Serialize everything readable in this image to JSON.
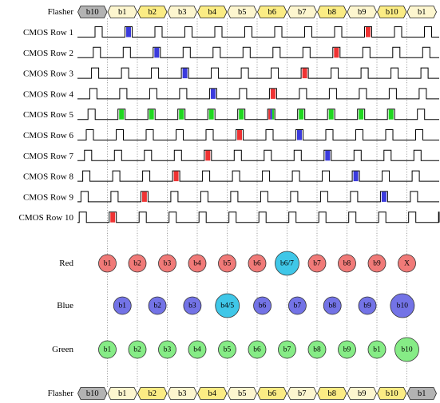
{
  "colors": {
    "red": "#f07a78",
    "red_pulse": "#ef3333",
    "blue": "#7373e6",
    "blue_pulse": "#3b3bdd",
    "green": "#86ec86",
    "green_pulse": "#1fd81f",
    "cyan": "#3fc7e8",
    "flasher_yellow": "#fbec84",
    "flasher_light": "#fdf6cf",
    "flasher_gray": "#b3b3b3"
  },
  "flasher": {
    "label": "Flasher",
    "top_segments": [
      {
        "text": "b10",
        "fill": "gray"
      },
      {
        "text": "b1",
        "fill": "light"
      },
      {
        "text": "b2",
        "fill": "yellow"
      },
      {
        "text": "b3",
        "fill": "light"
      },
      {
        "text": "b4",
        "fill": "yellow"
      },
      {
        "text": "b5",
        "fill": "light"
      },
      {
        "text": "b6",
        "fill": "yellow"
      },
      {
        "text": "b7",
        "fill": "light"
      },
      {
        "text": "b8",
        "fill": "yellow"
      },
      {
        "text": "b9",
        "fill": "light"
      },
      {
        "text": "b10",
        "fill": "yellow"
      },
      {
        "text": "b1",
        "fill": "light"
      }
    ],
    "bottom_segments": [
      {
        "text": "b10",
        "fill": "gray"
      },
      {
        "text": "b1",
        "fill": "light"
      },
      {
        "text": "b2",
        "fill": "yellow"
      },
      {
        "text": "b3",
        "fill": "light"
      },
      {
        "text": "b4",
        "fill": "yellow"
      },
      {
        "text": "b5",
        "fill": "light"
      },
      {
        "text": "b6",
        "fill": "yellow"
      },
      {
        "text": "b7",
        "fill": "light"
      },
      {
        "text": "b8",
        "fill": "yellow"
      },
      {
        "text": "b9",
        "fill": "light"
      },
      {
        "text": "b10",
        "fill": "yellow"
      },
      {
        "text": "b1",
        "fill": "gray"
      }
    ]
  },
  "cmos_rows": [
    {
      "label": "CMOS Row 1",
      "highlights": [
        {
          "slot": 1,
          "color": "blue"
        },
        {
          "slot": 9,
          "color": "red"
        }
      ]
    },
    {
      "label": "CMOS Row 2",
      "highlights": [
        {
          "slot": 2,
          "color": "blue"
        },
        {
          "slot": 8,
          "color": "red"
        }
      ]
    },
    {
      "label": "CMOS Row 3",
      "highlights": [
        {
          "slot": 3,
          "color": "blue"
        },
        {
          "slot": 7,
          "color": "red"
        }
      ]
    },
    {
      "label": "CMOS Row 4",
      "highlights": [
        {
          "slot": 4,
          "color": "blue"
        },
        {
          "slot": 6,
          "color": "red"
        }
      ]
    },
    {
      "label": "CMOS Row 5",
      "highlights": [
        {
          "slot": 1,
          "color": "green"
        },
        {
          "slot": 2,
          "color": "green"
        },
        {
          "slot": 3,
          "color": "green"
        },
        {
          "slot": 4,
          "color": "green"
        },
        {
          "slot": 5,
          "color": "green"
        },
        {
          "slot": 6,
          "color": "mixed"
        },
        {
          "slot": 7,
          "color": "green"
        },
        {
          "slot": 8,
          "color": "green"
        },
        {
          "slot": 9,
          "color": "green"
        },
        {
          "slot": 10,
          "color": "green"
        }
      ]
    },
    {
      "label": "CMOS Row 6",
      "highlights": [
        {
          "slot": 5,
          "color": "red"
        },
        {
          "slot": 7,
          "color": "blue"
        }
      ]
    },
    {
      "label": "CMOS Row 7",
      "highlights": [
        {
          "slot": 4,
          "color": "red"
        },
        {
          "slot": 8,
          "color": "blue"
        }
      ]
    },
    {
      "label": "CMOS Row 8",
      "highlights": [
        {
          "slot": 3,
          "color": "red"
        },
        {
          "slot": 9,
          "color": "blue"
        }
      ]
    },
    {
      "label": "CMOS Row 9",
      "highlights": [
        {
          "slot": 2,
          "color": "red"
        },
        {
          "slot": 10,
          "color": "blue"
        }
      ]
    },
    {
      "label": "CMOS Row 10",
      "highlights": [
        {
          "slot": 1,
          "color": "red"
        }
      ]
    }
  ],
  "channels": [
    {
      "label": "Red",
      "items": [
        {
          "text": "b1",
          "color": "red"
        },
        {
          "text": "b2",
          "color": "red"
        },
        {
          "text": "b3",
          "color": "red"
        },
        {
          "text": "b4",
          "color": "red"
        },
        {
          "text": "b5",
          "color": "red"
        },
        {
          "text": "b6",
          "color": "red"
        },
        {
          "text": "b6/7",
          "color": "cyan",
          "big": true
        },
        {
          "text": "b7",
          "color": "red"
        },
        {
          "text": "b8",
          "color": "red"
        },
        {
          "text": "b9",
          "color": "red"
        },
        {
          "text": "X",
          "color": "red"
        }
      ]
    },
    {
      "label": "Blue",
      "items": [
        {
          "text": "b1",
          "color": "blue"
        },
        {
          "text": "b2",
          "color": "blue"
        },
        {
          "text": "b3",
          "color": "blue"
        },
        {
          "text": "b4/5",
          "color": "cyan",
          "big": true
        },
        {
          "text": "b6",
          "color": "blue"
        },
        {
          "text": "b7",
          "color": "blue"
        },
        {
          "text": "b8",
          "color": "blue"
        },
        {
          "text": "b9",
          "color": "blue"
        },
        {
          "text": "b10",
          "color": "blue",
          "big": true
        }
      ]
    },
    {
      "label": "Green",
      "items": [
        {
          "text": "b1",
          "color": "green"
        },
        {
          "text": "b2",
          "color": "green"
        },
        {
          "text": "b3",
          "color": "green"
        },
        {
          "text": "b4",
          "color": "green"
        },
        {
          "text": "b5",
          "color": "green"
        },
        {
          "text": "b6",
          "color": "green"
        },
        {
          "text": "b7",
          "color": "green"
        },
        {
          "text": "b8",
          "color": "green"
        },
        {
          "text": "b9",
          "color": "green"
        },
        {
          "text": "b1",
          "color": "green"
        },
        {
          "text": "b10",
          "color": "green",
          "big": true
        }
      ]
    }
  ]
}
